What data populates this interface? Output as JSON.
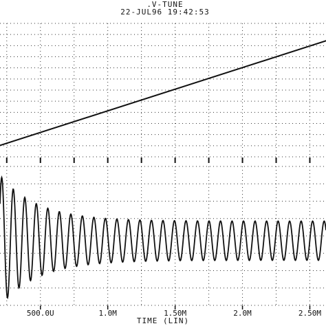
{
  "header": {
    "title": ".V-TUNE",
    "timestamp": "22-JUL96 19:42:53"
  },
  "chart_data": [
    {
      "type": "line",
      "title": ".V-TUNE",
      "xlabel": "TIME (LIN)",
      "ylabel": "",
      "xlim": [
        0.0002,
        0.00262
      ],
      "grid": true,
      "series": [
        {
          "x": [
            0.0002,
            0.0026
          ],
          "y": [
            0.0,
            1.0
          ]
        }
      ]
    },
    {
      "type": "line",
      "xlabel": "TIME (LIN)",
      "xlim": [
        0.0002,
        0.00262
      ],
      "grid": true,
      "series": [
        {
          "waveform": "damped-sine",
          "cycles_per_ms": 11.7,
          "decay_ms": 0.28,
          "steady_amplitude": 0.3,
          "initial_amplitude": 1.0
        }
      ]
    }
  ],
  "x_ticks": [
    {
      "value": 0.0005,
      "label": "500.0U"
    },
    {
      "value": 0.001,
      "label": "1.0M"
    },
    {
      "value": 0.0015,
      "label": "1.50M"
    },
    {
      "value": 0.002,
      "label": "2.0M"
    },
    {
      "value": 0.0025,
      "label": "2.50M"
    }
  ],
  "colors": {
    "ink": "#111111",
    "grid": "#333333",
    "paper": "#ffffff"
  }
}
